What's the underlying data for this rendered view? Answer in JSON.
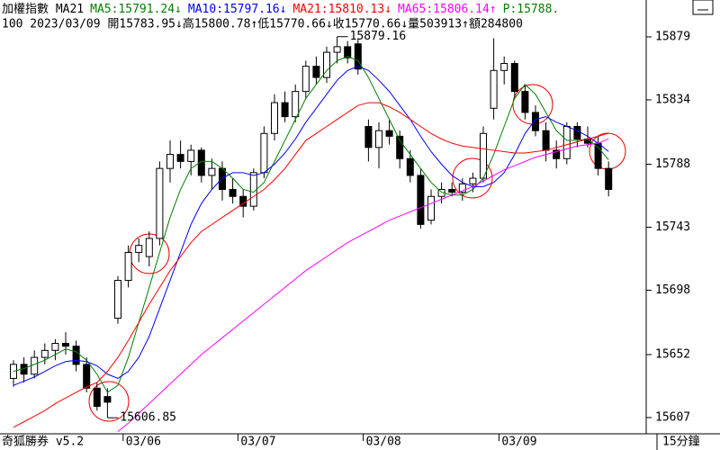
{
  "chart_data": {
    "type": "candlestick",
    "title": "加權指數 MA21",
    "series": [
      {
        "name": "MA5:15791.24↓",
        "color": "#008000",
        "values": [
          15640,
          15642,
          15645,
          15648,
          15652,
          15656,
          15654,
          15648,
          15638,
          15625,
          15630,
          15650,
          15675,
          15700,
          15725,
          15750,
          15770,
          15785,
          15790,
          15790,
          15785,
          15778,
          15770,
          15768,
          15775,
          15790,
          15805,
          15820,
          15835,
          15845,
          15855,
          15862,
          15865,
          15862,
          15850,
          15835,
          15820,
          15805,
          15795,
          15785,
          15775,
          15768,
          15766,
          15766,
          15770,
          15778,
          15795,
          15815,
          15835,
          15845,
          15838,
          15825,
          15812,
          15805,
          15805,
          15806,
          15800,
          15791.24
        ]
      },
      {
        "name": "MA10:15797.16↓",
        "color": "#0000ff",
        "values": [
          15630,
          15633,
          15636,
          15640,
          15644,
          15647,
          15648,
          15647,
          15644,
          15638,
          15635,
          15640,
          15650,
          15665,
          15685,
          15705,
          15725,
          15745,
          15760,
          15770,
          15778,
          15782,
          15782,
          15780,
          15782,
          15788,
          15796,
          15806,
          15818,
          15828,
          15838,
          15848,
          15855,
          15858,
          15855,
          15848,
          15840,
          15830,
          15820,
          15808,
          15797,
          15788,
          15780,
          15775,
          15772,
          15772,
          15775,
          15782,
          15795,
          15810,
          15820,
          15822,
          15818,
          15815,
          15812,
          15808,
          15803,
          15797.16
        ]
      },
      {
        "name": "MA21:15810.13↓",
        "color": "#ff0000",
        "values": [
          15600,
          15604,
          15608,
          15612,
          15617,
          15621,
          15625,
          15629,
          15632,
          15640,
          15650,
          15662,
          15675,
          15688,
          15700,
          15712,
          15722,
          15732,
          15740,
          15745,
          15750,
          15755,
          15760,
          15765,
          15770,
          15777,
          15785,
          15795,
          15805,
          15810,
          15815,
          15820,
          15825,
          15830,
          15832,
          15832,
          15829,
          15825,
          15820,
          15815,
          15810,
          15806,
          15803,
          15801,
          15800,
          15799,
          15798,
          15797,
          15796,
          15796,
          15797,
          15798,
          15800,
          15802,
          15804,
          15806,
          15808,
          15810.13
        ]
      },
      {
        "name": "MA65:15806.14↑",
        "color": "#ff00ff",
        "values": [
          null,
          null,
          null,
          null,
          null,
          null,
          null,
          null,
          null,
          null,
          15597,
          15603,
          15610,
          15617,
          15624,
          15631,
          15638,
          15645,
          15652,
          15658,
          15664,
          15670,
          15676,
          15682,
          15688,
          15694,
          15700,
          15706,
          15712,
          15717,
          15722,
          15727,
          15732,
          15736,
          15740,
          15744,
          15748,
          15751,
          15754,
          15757,
          15760,
          15763,
          15766,
          15769,
          15772,
          15776,
          15780,
          15784,
          15787,
          15790,
          15793,
          15795,
          15797,
          15799,
          15801,
          15802,
          15803,
          15806.14
        ]
      }
    ],
    "price_tag": "P:15788.",
    "price_tag_color": "#008000",
    "info": "100 2023/03/09 開15783.95↓高15800.78↑低15770.66↓收15770.66↓量503913↑額284800",
    "categories": [
      null,
      null,
      null,
      null,
      null,
      null,
      null,
      null,
      null,
      null,
      null,
      "03/06",
      null,
      null,
      null,
      null,
      null,
      null,
      null,
      null,
      null,
      null,
      "03/07",
      null,
      null,
      null,
      null,
      null,
      null,
      null,
      null,
      null,
      null,
      null,
      "03/08",
      null,
      null,
      null,
      null,
      null,
      null,
      null,
      null,
      null,
      null,
      null,
      null,
      "03/09",
      null,
      null,
      null,
      null,
      null,
      null,
      null,
      null,
      null,
      null
    ],
    "open": [
      15635,
      15645,
      15638,
      15650,
      15655,
      15660,
      15658,
      15645,
      15628,
      15622,
      15678,
      15705,
      15725,
      15722,
      15735,
      15785,
      15795,
      15790,
      15798,
      15780,
      15785,
      15770,
      15765,
      15758,
      15782,
      15810,
      15832,
      15822,
      15840,
      15858,
      15850,
      15868,
      15872,
      15874,
      15815,
      15800,
      15812,
      15808,
      15792,
      15780,
      15748,
      15765,
      15770,
      15768,
      15774,
      15778,
      15828,
      15855,
      15860,
      15840,
      15825,
      15812,
      15798,
      15792,
      15815,
      15806,
      15803,
      15785
    ],
    "high": [
      15648,
      15650,
      15655,
      15660,
      15663,
      15668,
      15662,
      15650,
      15632,
      15628,
      15708,
      15730,
      15735,
      15740,
      15790,
      15805,
      15805,
      15802,
      15800,
      15792,
      15790,
      15778,
      15770,
      15785,
      15815,
      15838,
      15840,
      15845,
      15862,
      15865,
      15872,
      15879.16,
      15876,
      15878,
      15820,
      15818,
      15820,
      15812,
      15798,
      15785,
      15770,
      15775,
      15775,
      15778,
      15782,
      15815,
      15878,
      15865,
      15862,
      15845,
      15830,
      15818,
      15805,
      15818,
      15818,
      15815,
      15808,
      15790
    ],
    "low": [
      15629,
      15632,
      15635,
      15645,
      15648,
      15652,
      15640,
      15625,
      15612,
      15606.85,
      15674,
      15700,
      15718,
      15715,
      15730,
      15775,
      15785,
      15780,
      15775,
      15770,
      15762,
      15760,
      15750,
      15755,
      15778,
      15805,
      15818,
      15818,
      15835,
      15845,
      15846,
      15860,
      15860,
      15852,
      15790,
      15785,
      15802,
      15785,
      15775,
      15742,
      15745,
      15760,
      15765,
      15762,
      15768,
      15775,
      15820,
      15845,
      15835,
      15820,
      15808,
      15790,
      15785,
      15788,
      15800,
      15800,
      15780,
      15765
    ],
    "close": [
      15645,
      15638,
      15650,
      15655,
      15660,
      15658,
      15645,
      15628,
      15615,
      15618,
      15705,
      15725,
      15730,
      15735,
      15785,
      15795,
      15790,
      15798,
      15780,
      15785,
      15770,
      15765,
      15758,
      15782,
      15810,
      15832,
      15822,
      15840,
      15858,
      15850,
      15868,
      15872,
      15864,
      15856,
      15800,
      15812,
      15808,
      15792,
      15780,
      15745,
      15765,
      15770,
      15768,
      15774,
      15778,
      15810,
      15855,
      15860,
      15840,
      15825,
      15812,
      15798,
      15792,
      15815,
      15806,
      15803,
      15785,
      15770
    ],
    "up_color": "#ffffff",
    "down_color": "#000000",
    "high_label": "15879.16",
    "low_label": "15606.85",
    "ylim": [
      15595.4,
      15882.2
    ],
    "yticks": [
      15607,
      15652,
      15698,
      15743,
      15788,
      15834,
      15879
    ],
    "brand": "奇狐勝券 v5.2",
    "period": "15分鐘"
  }
}
